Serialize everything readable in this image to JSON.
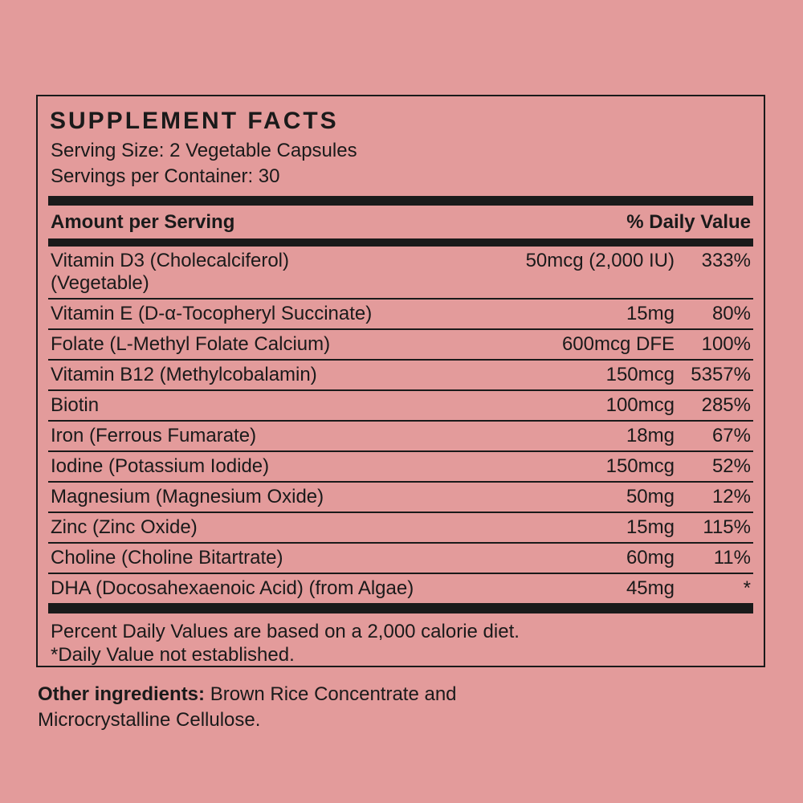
{
  "colors": {
    "background": "#e39b9b",
    "ink": "#1a1a1a"
  },
  "panel": {
    "title": "SUPPLEMENT FACTS",
    "serving_size": "Serving Size: 2 Vegetable Capsules",
    "servings_per_container": "Servings per Container: 30",
    "columns": {
      "amount_header": "Amount per Serving",
      "daily_value_header": "% Daily Value"
    },
    "rows": [
      {
        "name": "Vitamin D3 (Cholecalciferol)",
        "name2": "(Vegetable)",
        "amount": "50mcg (2,000 IU)",
        "dv": "333%"
      },
      {
        "name": "Vitamin E (D-α-Tocopheryl Succinate)",
        "name2": "",
        "amount": "15mg",
        "dv": "80%"
      },
      {
        "name": "Folate (L-Methyl Folate Calcium)",
        "name2": "",
        "amount": "600mcg DFE",
        "dv": "100%"
      },
      {
        "name": "Vitamin B12 (Methylcobalamin)",
        "name2": "",
        "amount": "150mcg",
        "dv": "5357%"
      },
      {
        "name": "Biotin",
        "name2": "",
        "amount": "100mcg",
        "dv": "285%"
      },
      {
        "name": "Iron (Ferrous Fumarate)",
        "name2": "",
        "amount": "18mg",
        "dv": "67%"
      },
      {
        "name": "Iodine (Potassium Iodide)",
        "name2": "",
        "amount": "150mcg",
        "dv": "52%"
      },
      {
        "name": "Magnesium (Magnesium Oxide)",
        "name2": "",
        "amount": "50mg",
        "dv": "12%"
      },
      {
        "name": "Zinc (Zinc Oxide)",
        "name2": "",
        "amount": "15mg",
        "dv": "115%"
      },
      {
        "name": "Choline (Choline Bitartrate)",
        "name2": "",
        "amount": "60mg",
        "dv": "11%"
      },
      {
        "name": "DHA (Docosahexaenoic Acid) (from Algae)",
        "name2": "",
        "amount": "45mg",
        "dv": "*"
      }
    ],
    "footnotes": {
      "line1": "Percent Daily Values are based on a 2,000 calorie diet.",
      "line2": "*Daily Value not established."
    }
  },
  "other_ingredients": {
    "label": "Other ingredients:",
    "text": " Brown Rice Concentrate and Microcrystalline Cellulose."
  }
}
